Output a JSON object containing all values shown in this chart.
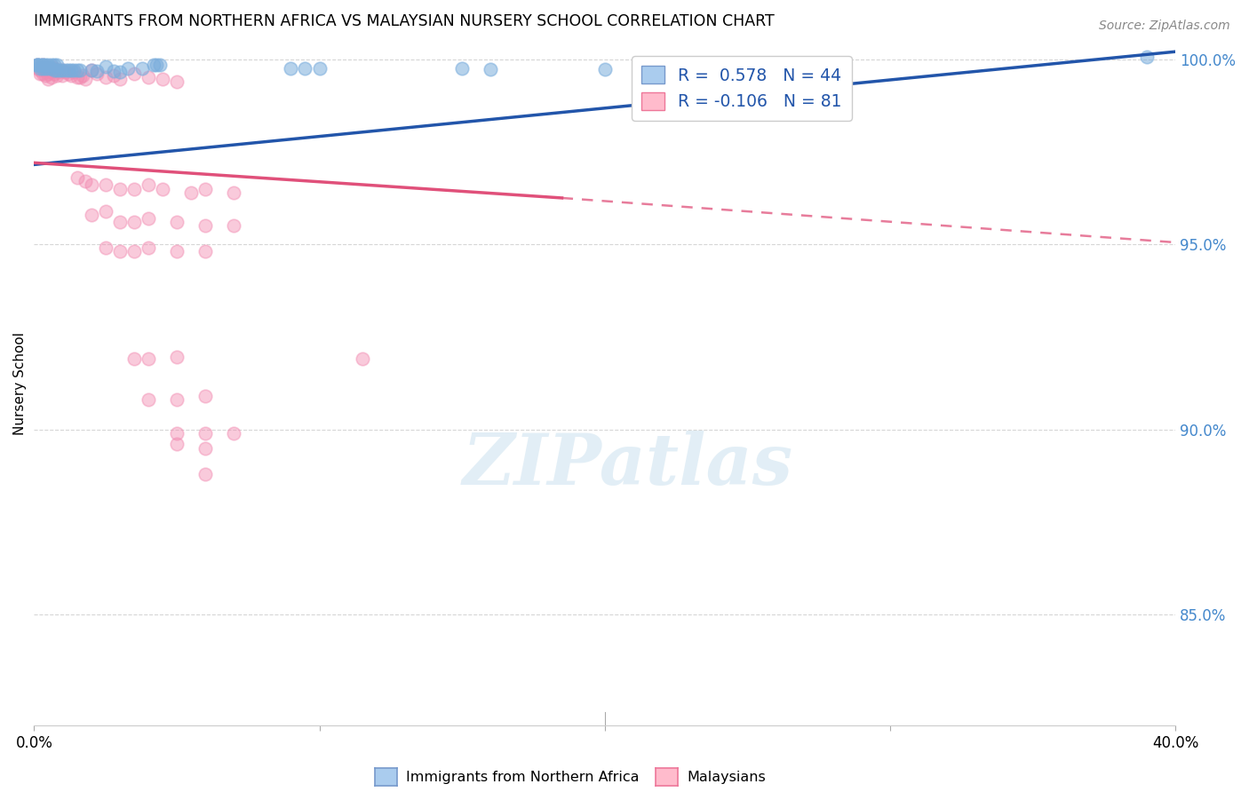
{
  "title": "IMMIGRANTS FROM NORTHERN AFRICA VS MALAYSIAN NURSERY SCHOOL CORRELATION CHART",
  "source": "Source: ZipAtlas.com",
  "ylabel": "Nursery School",
  "xlim": [
    0.0,
    0.4
  ],
  "ylim": [
    0.82,
    1.005
  ],
  "y_ticks": [
    0.85,
    0.9,
    0.95,
    1.0
  ],
  "y_tick_labels": [
    "85.0%",
    "90.0%",
    "95.0%",
    "100.0%"
  ],
  "blue_color": "#7aaddc",
  "pink_color": "#f28ab0",
  "blue_line_color": "#2255aa",
  "pink_line_color": "#e0507a",
  "blue_line": [
    [
      0.0,
      0.9715
    ],
    [
      0.4,
      1.002
    ]
  ],
  "pink_line_solid": [
    [
      0.0,
      0.972
    ],
    [
      0.185,
      0.9625
    ]
  ],
  "pink_line_dashed": [
    [
      0.185,
      0.9625
    ],
    [
      0.4,
      0.9505
    ]
  ],
  "blue_scatter": [
    [
      0.001,
      0.9985
    ],
    [
      0.001,
      0.9985
    ],
    [
      0.002,
      0.9985
    ],
    [
      0.003,
      0.9985
    ],
    [
      0.001,
      0.9985
    ],
    [
      0.002,
      0.9975
    ],
    [
      0.003,
      0.9975
    ],
    [
      0.004,
      0.9975
    ],
    [
      0.005,
      0.9975
    ],
    [
      0.006,
      0.9975
    ],
    [
      0.003,
      0.9985
    ],
    [
      0.004,
      0.9985
    ],
    [
      0.005,
      0.9985
    ],
    [
      0.006,
      0.9985
    ],
    [
      0.007,
      0.9985
    ],
    [
      0.008,
      0.9985
    ],
    [
      0.007,
      0.997
    ],
    [
      0.008,
      0.997
    ],
    [
      0.009,
      0.997
    ],
    [
      0.01,
      0.997
    ],
    [
      0.011,
      0.997
    ],
    [
      0.012,
      0.997
    ],
    [
      0.013,
      0.997
    ],
    [
      0.014,
      0.997
    ],
    [
      0.015,
      0.997
    ],
    [
      0.016,
      0.997
    ],
    [
      0.02,
      0.997
    ],
    [
      0.022,
      0.9968
    ],
    [
      0.025,
      0.998
    ],
    [
      0.028,
      0.9968
    ],
    [
      0.03,
      0.9965
    ],
    [
      0.033,
      0.9975
    ],
    [
      0.038,
      0.9975
    ],
    [
      0.042,
      0.9985
    ],
    [
      0.043,
      0.9985
    ],
    [
      0.044,
      0.9985
    ],
    [
      0.09,
      0.9975
    ],
    [
      0.095,
      0.9975
    ],
    [
      0.1,
      0.9975
    ],
    [
      0.15,
      0.9975
    ],
    [
      0.16,
      0.9972
    ],
    [
      0.2,
      0.9972
    ],
    [
      0.25,
      0.998
    ],
    [
      0.39,
      1.0005
    ]
  ],
  "pink_scatter": [
    [
      0.001,
      0.9985
    ],
    [
      0.001,
      0.9975
    ],
    [
      0.002,
      0.997
    ],
    [
      0.002,
      0.996
    ],
    [
      0.003,
      0.9985
    ],
    [
      0.003,
      0.9975
    ],
    [
      0.003,
      0.996
    ],
    [
      0.004,
      0.998
    ],
    [
      0.004,
      0.997
    ],
    [
      0.004,
      0.9955
    ],
    [
      0.005,
      0.9975
    ],
    [
      0.005,
      0.996
    ],
    [
      0.005,
      0.9945
    ],
    [
      0.006,
      0.998
    ],
    [
      0.006,
      0.9965
    ],
    [
      0.006,
      0.995
    ],
    [
      0.007,
      0.9975
    ],
    [
      0.007,
      0.996
    ],
    [
      0.008,
      0.997
    ],
    [
      0.008,
      0.9955
    ],
    [
      0.009,
      0.9965
    ],
    [
      0.01,
      0.997
    ],
    [
      0.01,
      0.9955
    ],
    [
      0.011,
      0.9965
    ],
    [
      0.012,
      0.996
    ],
    [
      0.013,
      0.9955
    ],
    [
      0.014,
      0.9965
    ],
    [
      0.015,
      0.995
    ],
    [
      0.016,
      0.995
    ],
    [
      0.017,
      0.9955
    ],
    [
      0.018,
      0.9945
    ],
    [
      0.02,
      0.997
    ],
    [
      0.022,
      0.996
    ],
    [
      0.025,
      0.995
    ],
    [
      0.028,
      0.9955
    ],
    [
      0.03,
      0.9945
    ],
    [
      0.035,
      0.996
    ],
    [
      0.04,
      0.995
    ],
    [
      0.045,
      0.9945
    ],
    [
      0.05,
      0.994
    ],
    [
      0.015,
      0.968
    ],
    [
      0.018,
      0.967
    ],
    [
      0.02,
      0.966
    ],
    [
      0.025,
      0.966
    ],
    [
      0.03,
      0.965
    ],
    [
      0.035,
      0.965
    ],
    [
      0.04,
      0.966
    ],
    [
      0.045,
      0.965
    ],
    [
      0.055,
      0.964
    ],
    [
      0.06,
      0.965
    ],
    [
      0.07,
      0.964
    ],
    [
      0.02,
      0.958
    ],
    [
      0.025,
      0.959
    ],
    [
      0.03,
      0.956
    ],
    [
      0.035,
      0.956
    ],
    [
      0.04,
      0.957
    ],
    [
      0.05,
      0.956
    ],
    [
      0.06,
      0.955
    ],
    [
      0.07,
      0.955
    ],
    [
      0.025,
      0.949
    ],
    [
      0.03,
      0.948
    ],
    [
      0.035,
      0.948
    ],
    [
      0.04,
      0.949
    ],
    [
      0.05,
      0.948
    ],
    [
      0.06,
      0.948
    ],
    [
      0.035,
      0.919
    ],
    [
      0.04,
      0.919
    ],
    [
      0.05,
      0.9195
    ],
    [
      0.115,
      0.919
    ],
    [
      0.04,
      0.908
    ],
    [
      0.05,
      0.908
    ],
    [
      0.06,
      0.909
    ],
    [
      0.05,
      0.899
    ],
    [
      0.06,
      0.899
    ],
    [
      0.07,
      0.899
    ],
    [
      0.05,
      0.896
    ],
    [
      0.06,
      0.895
    ],
    [
      0.06,
      0.888
    ]
  ],
  "watermark_text": "ZIPatlas",
  "legend_label1": "Immigrants from Northern Africa",
  "legend_label2": "Malaysians",
  "background_color": "#ffffff",
  "grid_color": "#cccccc"
}
